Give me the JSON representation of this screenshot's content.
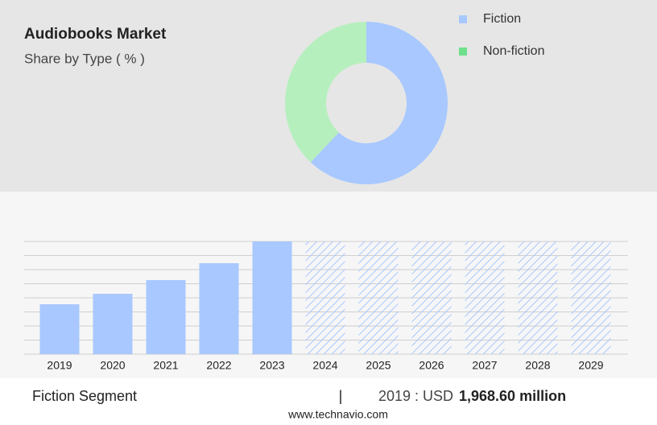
{
  "chart_data": [
    {
      "type": "pie",
      "title": "Audiobooks Market",
      "subtitle": "Share by Type ( % )",
      "donut": true,
      "categories": [
        "Fiction",
        "Non-fiction"
      ],
      "values": [
        62,
        38
      ],
      "colors": [
        "#a8c8ff",
        "#b6efbe"
      ],
      "legend_colors": [
        "#a8c8ff",
        "#6ee08c"
      ],
      "legend": "upper right"
    },
    {
      "type": "bar",
      "categories": [
        "2019",
        "2020",
        "2021",
        "2022",
        "2023",
        "2024",
        "2025",
        "2026",
        "2027",
        "2028",
        "2029"
      ],
      "values": [
        1968.6,
        2381,
        2921,
        3588,
        4445,
        null,
        null,
        null,
        null,
        null,
        null
      ],
      "color": "#a8c8ff",
      "forecast_color": "#a8c8ff",
      "ylim": [
        0,
        4445
      ],
      "grid": true
    }
  ],
  "footer": {
    "segment": "Fiction Segment",
    "separator": "|",
    "year_label": "2019 : USD",
    "amount": "1,968.60 million",
    "source": "www.technavio.com"
  }
}
